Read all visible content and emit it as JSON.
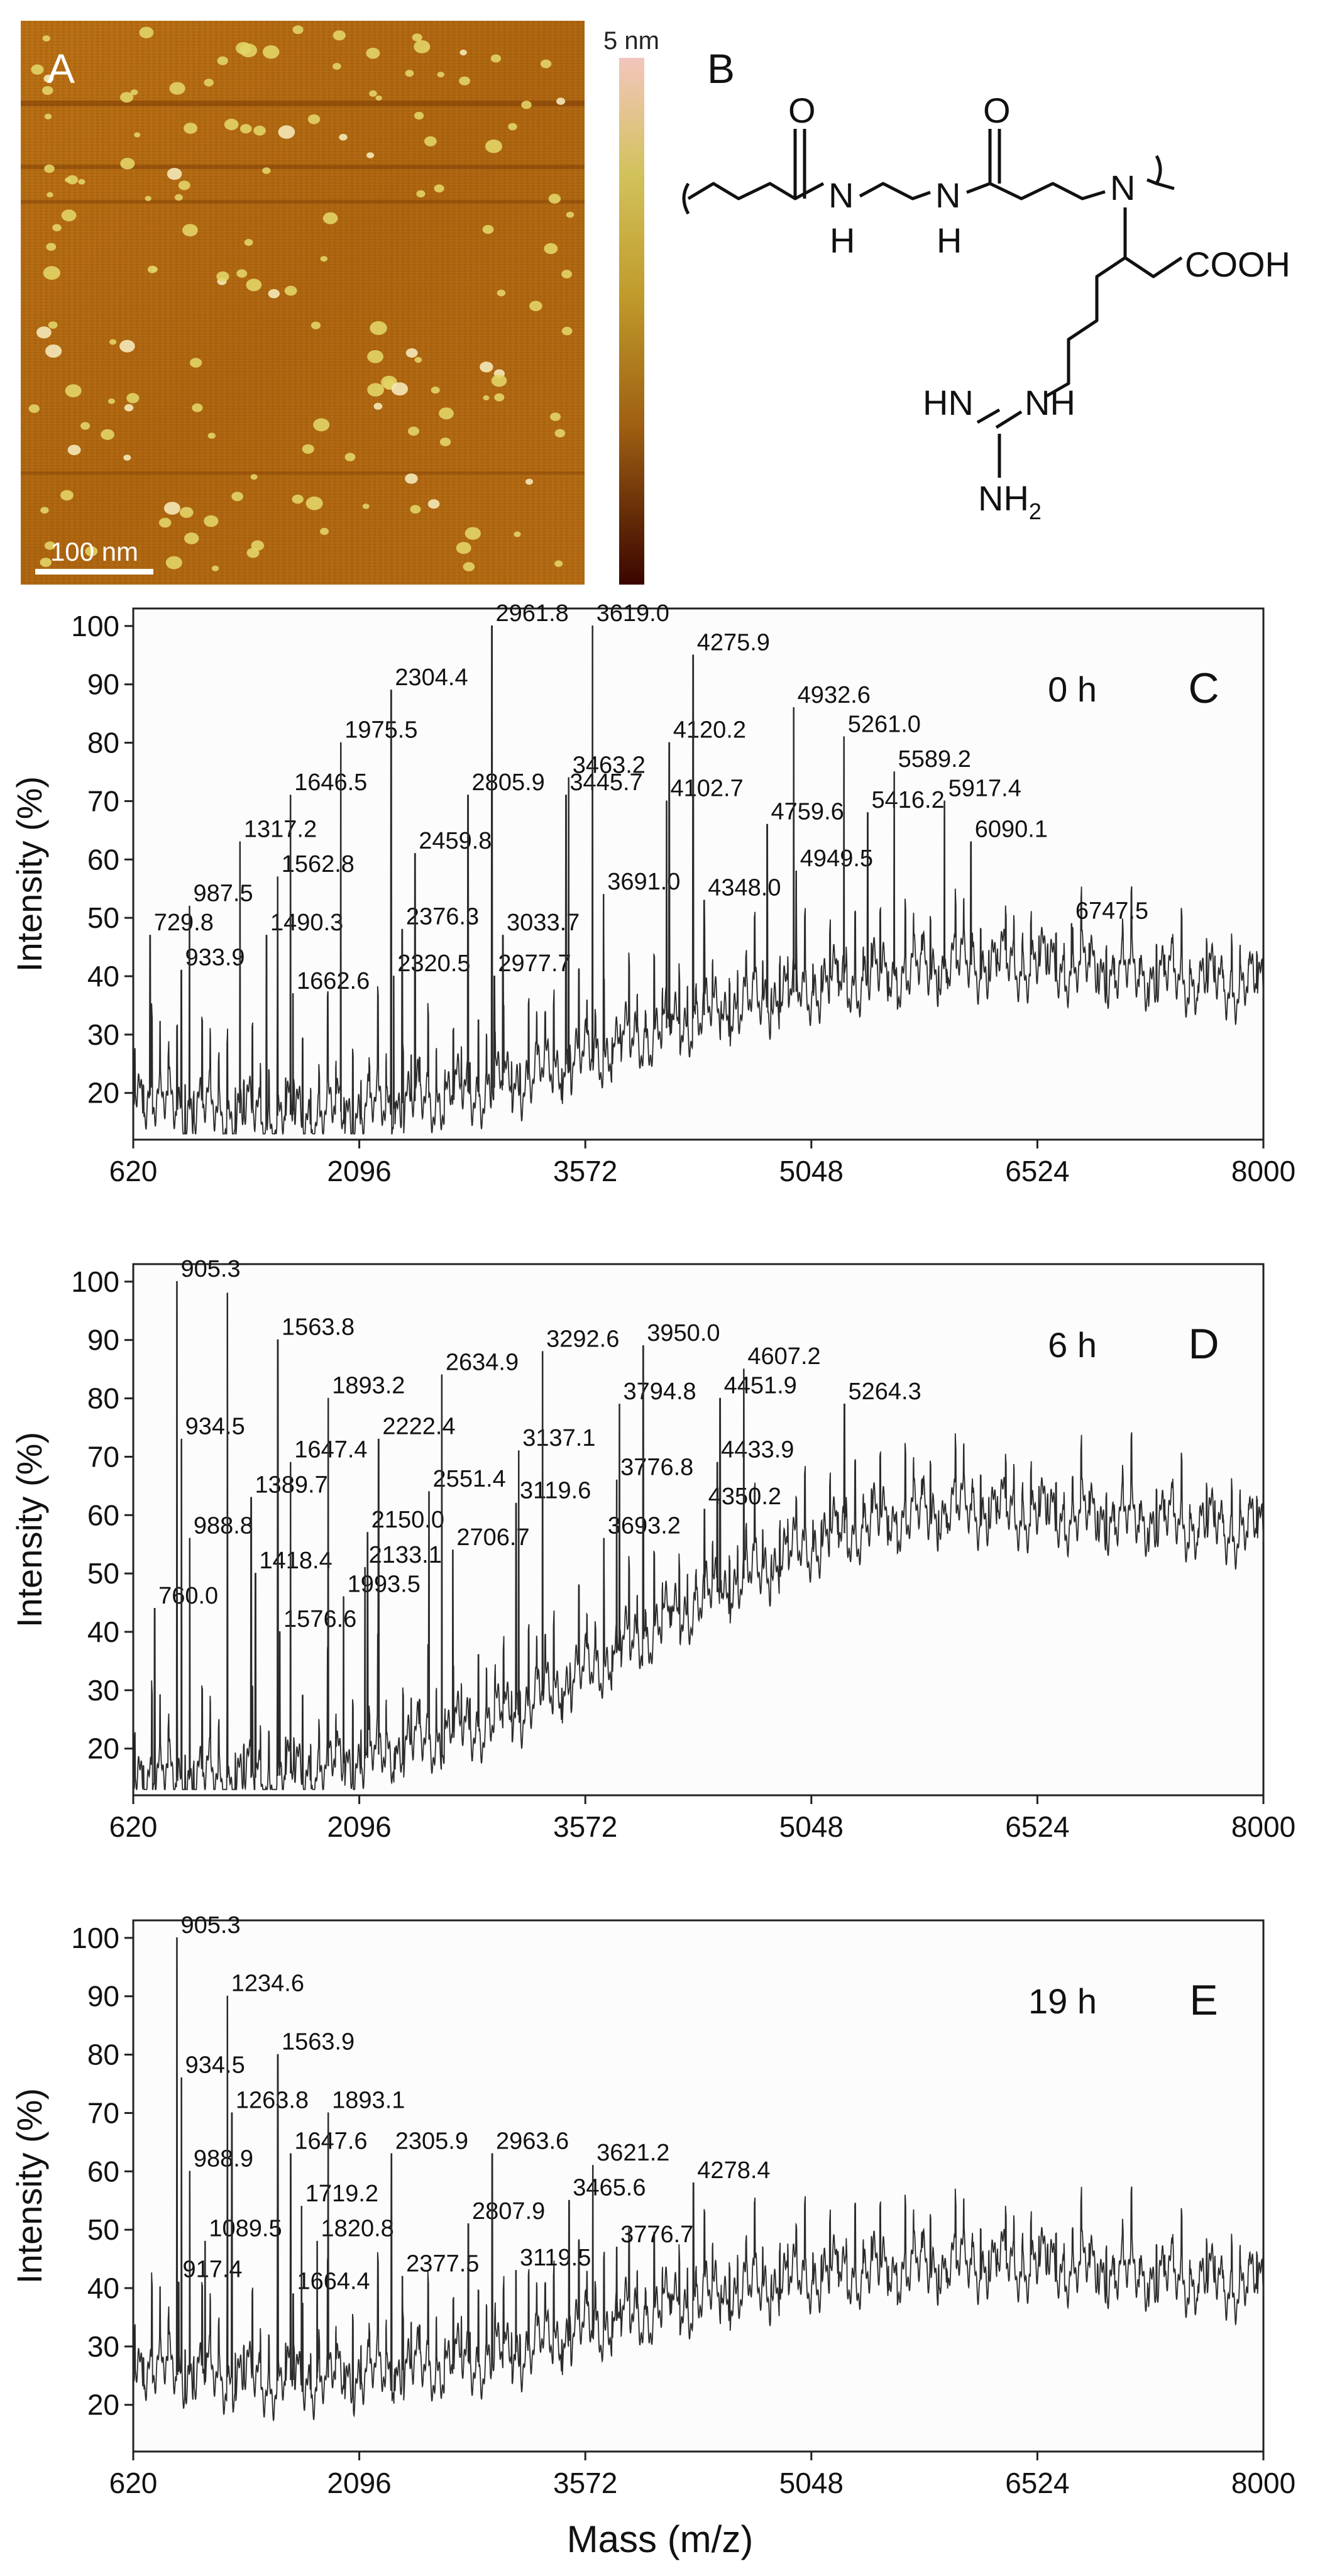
{
  "panel_a": {
    "label": "A",
    "colorbar_max": "5 nm",
    "scale_bar_label": "100 nm",
    "image_description": "AFM height image"
  },
  "panel_b": {
    "label": "B",
    "atoms": {
      "o1": "O",
      "o2": "O",
      "nh1_n": "N",
      "nh1_h": "H",
      "nh2_n": "N",
      "nh2_h": "H",
      "n_tert": "N",
      "cooh": "COOH",
      "guan_hn": "HN",
      "guan_nh": "NH",
      "guan_nh2": "NH",
      "guan_nh2_sub": "2"
    }
  },
  "shared_axes": {
    "xlabel": "Mass (m/z)",
    "ylabel": "Intensity (%)",
    "xticks": [
      620,
      2096,
      3572,
      5048,
      6524,
      8000
    ],
    "yticks": [
      20,
      30,
      40,
      50,
      60,
      70,
      80,
      90,
      100
    ]
  },
  "chart_data": [
    {
      "type": "line",
      "panel": "C",
      "time_label": "0 h",
      "xlabel": "",
      "ylabel": "Intensity (%)",
      "xlim": [
        620,
        8000
      ],
      "ylim": [
        12,
        103
      ],
      "baseline": {
        "x": [
          620,
          800,
          1500,
          2096,
          3000,
          3572,
          4300,
          5048,
          6000,
          6524,
          7300,
          8000
        ],
        "y": [
          22,
          18,
          16,
          17,
          21,
          26,
          33,
          38,
          42,
          42,
          40,
          38
        ]
      },
      "spacing": 164,
      "peaks": [
        {
          "x": 729.8,
          "y": 47,
          "label": "729.8"
        },
        {
          "x": 933.9,
          "y": 41,
          "label": "933.9"
        },
        {
          "x": 987.5,
          "y": 52,
          "label": "987.5"
        },
        {
          "x": 1317.2,
          "y": 63,
          "label": "1317.2"
        },
        {
          "x": 1490.3,
          "y": 47,
          "label": "1490.3"
        },
        {
          "x": 1562.8,
          "y": 57,
          "label": "1562.8"
        },
        {
          "x": 1646.5,
          "y": 71,
          "label": "1646.5"
        },
        {
          "x": 1662.6,
          "y": 37,
          "label": "1662.6"
        },
        {
          "x": 1975.5,
          "y": 80,
          "label": "1975.5"
        },
        {
          "x": 2304.4,
          "y": 89,
          "label": "2304.4"
        },
        {
          "x": 2320.5,
          "y": 40,
          "label": "2320.5"
        },
        {
          "x": 2376.3,
          "y": 48,
          "label": "2376.3"
        },
        {
          "x": 2459.8,
          "y": 61,
          "label": "2459.8"
        },
        {
          "x": 2805.9,
          "y": 71,
          "label": "2805.9"
        },
        {
          "x": 2961.8,
          "y": 100,
          "label": "2961.8"
        },
        {
          "x": 2977.7,
          "y": 40,
          "label": "2977.7"
        },
        {
          "x": 3033.7,
          "y": 47,
          "label": "3033.7"
        },
        {
          "x": 3445.7,
          "y": 71,
          "label": "3445.7"
        },
        {
          "x": 3463.2,
          "y": 74,
          "label": "3463.2"
        },
        {
          "x": 3619.0,
          "y": 100,
          "label": "3619.0"
        },
        {
          "x": 3691.0,
          "y": 54,
          "label": "3691.0"
        },
        {
          "x": 4102.7,
          "y": 70,
          "label": "4102.7"
        },
        {
          "x": 4120.2,
          "y": 80,
          "label": "4120.2"
        },
        {
          "x": 4275.9,
          "y": 95,
          "label": "4275.9"
        },
        {
          "x": 4348.0,
          "y": 53,
          "label": "4348.0"
        },
        {
          "x": 4759.6,
          "y": 66,
          "label": "4759.6"
        },
        {
          "x": 4932.6,
          "y": 86,
          "label": "4932.6"
        },
        {
          "x": 4949.5,
          "y": 58,
          "label": "4949.5"
        },
        {
          "x": 5261.0,
          "y": 81,
          "label": "5261.0"
        },
        {
          "x": 5416.2,
          "y": 68,
          "label": "5416.2"
        },
        {
          "x": 5589.2,
          "y": 75,
          "label": "5589.2"
        },
        {
          "x": 5917.4,
          "y": 70,
          "label": "5917.4"
        },
        {
          "x": 6090.1,
          "y": 63,
          "label": "6090.1"
        },
        {
          "x": 6747.5,
          "y": 49,
          "label": "6747.5"
        }
      ]
    },
    {
      "type": "line",
      "panel": "D",
      "time_label": "6 h",
      "xlabel": "",
      "ylabel": "Intensity (%)",
      "xlim": [
        620,
        8000
      ],
      "ylim": [
        12,
        103
      ],
      "baseline": {
        "x": [
          620,
          800,
          1500,
          2096,
          3000,
          3572,
          4300,
          5048,
          5500,
          6000,
          6524,
          7300,
          8000
        ],
        "y": [
          17,
          15,
          15,
          18,
          25,
          33,
          45,
          55,
          59,
          61,
          60,
          59,
          57
        ]
      },
      "spacing": 164,
      "peaks": [
        {
          "x": 760.0,
          "y": 44,
          "label": "760.0"
        },
        {
          "x": 905.3,
          "y": 100,
          "label": "905.3"
        },
        {
          "x": 934.5,
          "y": 73,
          "label": "934.5"
        },
        {
          "x": 988.8,
          "y": 56,
          "label": "988.8"
        },
        {
          "x": 1234.6,
          "y": 98,
          "label": ""
        },
        {
          "x": 1389.7,
          "y": 63,
          "label": "1389.7"
        },
        {
          "x": 1418.4,
          "y": 50,
          "label": "1418.4"
        },
        {
          "x": 1563.8,
          "y": 90,
          "label": "1563.8"
        },
        {
          "x": 1576.6,
          "y": 40,
          "label": "1576.6"
        },
        {
          "x": 1647.4,
          "y": 69,
          "label": "1647.4"
        },
        {
          "x": 1893.2,
          "y": 80,
          "label": "1893.2"
        },
        {
          "x": 1993.5,
          "y": 46,
          "label": "1993.5"
        },
        {
          "x": 2133.1,
          "y": 51,
          "label": "2133.1"
        },
        {
          "x": 2150.0,
          "y": 57,
          "label": "2150.0"
        },
        {
          "x": 2222.4,
          "y": 73,
          "label": "2222.4"
        },
        {
          "x": 2551.4,
          "y": 64,
          "label": "2551.4"
        },
        {
          "x": 2634.9,
          "y": 84,
          "label": "2634.9"
        },
        {
          "x": 2706.7,
          "y": 54,
          "label": "2706.7"
        },
        {
          "x": 3119.6,
          "y": 62,
          "label": "3119.6"
        },
        {
          "x": 3137.1,
          "y": 71,
          "label": "3137.1"
        },
        {
          "x": 3292.6,
          "y": 88,
          "label": "3292.6"
        },
        {
          "x": 3693.2,
          "y": 56,
          "label": "3693.2"
        },
        {
          "x": 3776.8,
          "y": 66,
          "label": "3776.8"
        },
        {
          "x": 3794.8,
          "y": 79,
          "label": "3794.8"
        },
        {
          "x": 3950.0,
          "y": 89,
          "label": "3950.0"
        },
        {
          "x": 4350.2,
          "y": 61,
          "label": "4350.2"
        },
        {
          "x": 4433.9,
          "y": 69,
          "label": "4433.9"
        },
        {
          "x": 4451.9,
          "y": 80,
          "label": "4451.9"
        },
        {
          "x": 4607.2,
          "y": 85,
          "label": "4607.2"
        },
        {
          "x": 5264.3,
          "y": 79,
          "label": "5264.3"
        }
      ]
    },
    {
      "type": "line",
      "panel": "E",
      "time_label": "19 h",
      "xlabel": "Mass (m/z)",
      "ylabel": "Intensity (%)",
      "xlim": [
        620,
        8000
      ],
      "ylim": [
        12,
        103
      ],
      "baseline": {
        "x": [
          620,
          800,
          1500,
          2096,
          3000,
          3572,
          4300,
          5048,
          6000,
          6524,
          7300,
          8000
        ],
        "y": [
          28,
          26,
          24,
          25,
          28,
          33,
          38,
          42,
          44,
          44,
          42,
          40
        ]
      },
      "spacing": 164,
      "peaks": [
        {
          "x": 905.3,
          "y": 100,
          "label": "905.3"
        },
        {
          "x": 917.4,
          "y": 41,
          "label": "917.4"
        },
        {
          "x": 934.5,
          "y": 76,
          "label": "934.5"
        },
        {
          "x": 988.9,
          "y": 60,
          "label": "988.9"
        },
        {
          "x": 1089.5,
          "y": 48,
          "label": "1089.5"
        },
        {
          "x": 1234.6,
          "y": 90,
          "label": "1234.6"
        },
        {
          "x": 1263.8,
          "y": 70,
          "label": "1263.8"
        },
        {
          "x": 1563.9,
          "y": 80,
          "label": "1563.9"
        },
        {
          "x": 1647.6,
          "y": 63,
          "label": "1647.6"
        },
        {
          "x": 1664.4,
          "y": 39,
          "label": "1664.4"
        },
        {
          "x": 1719.2,
          "y": 54,
          "label": "1719.2"
        },
        {
          "x": 1820.8,
          "y": 48,
          "label": "1820.8"
        },
        {
          "x": 1893.1,
          "y": 70,
          "label": "1893.1"
        },
        {
          "x": 2305.9,
          "y": 63,
          "label": "2305.9"
        },
        {
          "x": 2377.5,
          "y": 42,
          "label": "2377.5"
        },
        {
          "x": 2807.9,
          "y": 51,
          "label": "2807.9"
        },
        {
          "x": 2963.6,
          "y": 63,
          "label": "2963.6"
        },
        {
          "x": 3119.5,
          "y": 43,
          "label": "3119.5"
        },
        {
          "x": 3465.6,
          "y": 55,
          "label": "3465.6"
        },
        {
          "x": 3621.2,
          "y": 61,
          "label": "3621.2"
        },
        {
          "x": 3776.7,
          "y": 47,
          "label": "3776.7"
        },
        {
          "x": 4278.4,
          "y": 58,
          "label": "4278.4"
        }
      ]
    }
  ]
}
